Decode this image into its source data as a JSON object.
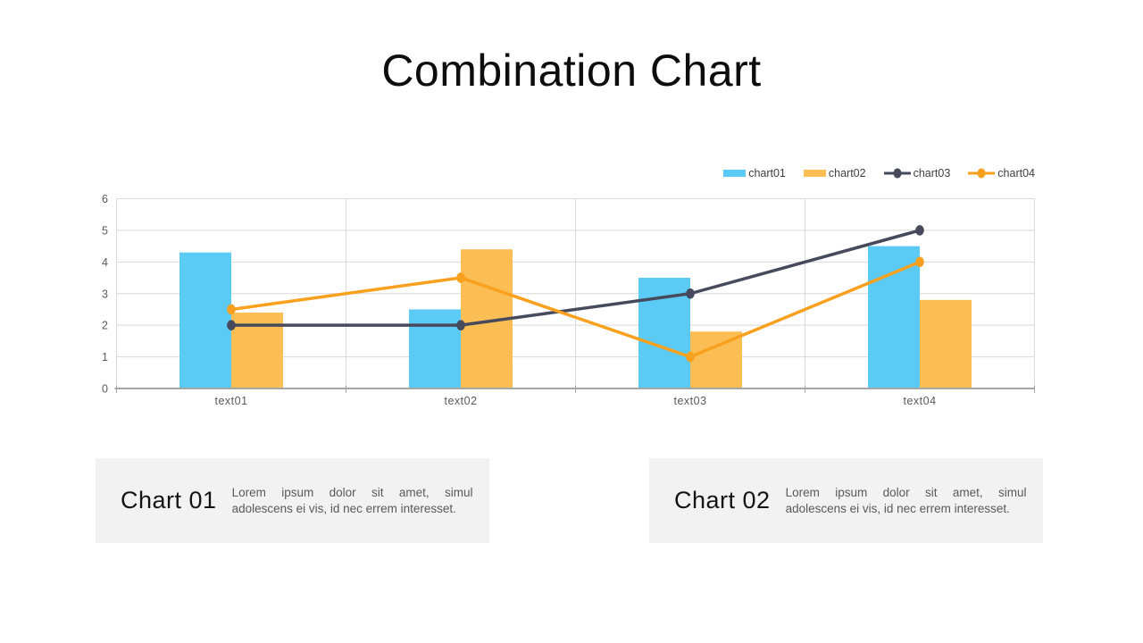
{
  "chart_data": {
    "type": "combo",
    "title": "Combination Chart",
    "categories": [
      "text01",
      "text02",
      "text03",
      "text04"
    ],
    "series": [
      {
        "name": "chart01",
        "type": "bar",
        "color": "#5BCBF5",
        "values": [
          4.3,
          2.5,
          3.5,
          4.5
        ]
      },
      {
        "name": "chart02",
        "type": "bar",
        "color": "#FBBE55",
        "values": [
          2.4,
          4.4,
          1.8,
          2.8
        ]
      },
      {
        "name": "chart03",
        "type": "line",
        "color": "#464A5C",
        "values": [
          2.0,
          2.0,
          3.0,
          5.0
        ]
      },
      {
        "name": "chart04",
        "type": "line",
        "color": "#F9A11E",
        "values": [
          2.5,
          3.5,
          1.0,
          4.0
        ]
      }
    ],
    "xlabel": "",
    "ylabel": "",
    "ylim": [
      0,
      6
    ],
    "yticks": [
      0,
      1,
      2,
      3,
      4,
      5,
      6
    ],
    "grid": true,
    "legend_position": "top-right",
    "colors": {
      "gridline": "#D9D9D9",
      "axis": "#A6A6A6",
      "tick_label": "#595959",
      "legend_text": "#404040"
    }
  },
  "cards": [
    {
      "heading": "Chart 01",
      "body": "Lorem ipsum dolor sit amet, simul adolescens ei vis, id nec errem interesset."
    },
    {
      "heading": "Chart 02",
      "body": "Lorem ipsum dolor sit amet, simul adolescens ei vis, id nec errem interesset."
    }
  ]
}
